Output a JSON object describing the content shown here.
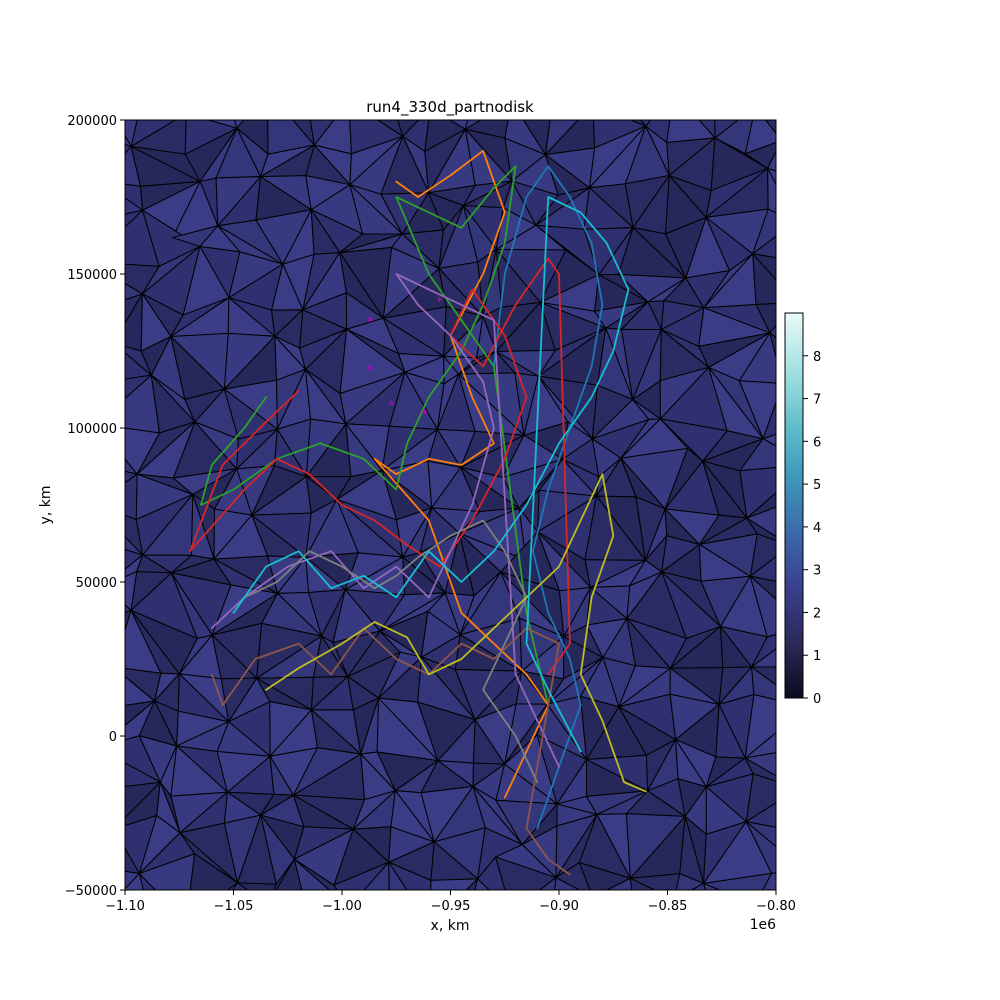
{
  "chart_data": {
    "type": "line",
    "title": "run4_330d_partnodisk",
    "xlabel": "x, km",
    "ylabel": "y, km",
    "x_offset_label": "1e6",
    "xlim": [
      -1.1,
      -0.8
    ],
    "ylim": [
      -50000,
      200000
    ],
    "x_ticks": [
      -1.1,
      -1.05,
      -1.0,
      -0.95,
      -0.9,
      -0.85,
      -0.8
    ],
    "x_tick_labels": [
      "−1.10",
      "−1.05",
      "−1.00",
      "−0.95",
      "−0.90",
      "−0.85",
      "−0.80"
    ],
    "y_ticks": [
      -50000,
      0,
      50000,
      100000,
      150000,
      200000
    ],
    "y_tick_labels": [
      "−50000",
      "0",
      "50000",
      "100000",
      "150000",
      "200000"
    ],
    "colorbar": {
      "range": [
        0,
        9
      ],
      "ticks": [
        0,
        1,
        2,
        3,
        4,
        5,
        6,
        7,
        8
      ],
      "tick_labels": [
        "0",
        "1",
        "2",
        "3",
        "4",
        "5",
        "6",
        "7",
        "8"
      ],
      "colors": [
        "#0b0b1e",
        "#2a2a5a",
        "#3a3f8c",
        "#3a6aa8",
        "#3e97ba",
        "#63c0cc",
        "#a7e2e2",
        "#eafafa"
      ]
    },
    "background": {
      "type": "triangulated mesh",
      "fill_colors": [
        "#2f3070",
        "#34367a",
        "#2a2b62",
        "#3a3d86",
        "#26275a",
        "#373a80"
      ],
      "edge_color": "#000000"
    },
    "series_colors": [
      "#1f77b4",
      "#ff7f0e",
      "#2ca02c",
      "#d62728",
      "#9467bd",
      "#8c564b",
      "#e377c2",
      "#7f7f7f",
      "#bcbd22",
      "#17becf"
    ],
    "start_marker_color": "#cc00cc",
    "start_markers": [
      {
        "x": -0.987,
        "y": 134500
      },
      {
        "x": -0.987,
        "y": 119000
      },
      {
        "x": -0.977,
        "y": 107500
      },
      {
        "x": -0.962,
        "y": 104500
      },
      {
        "x": -0.955,
        "y": 141000
      }
    ],
    "series": [
      {
        "color": "#1f77b4",
        "x": [
          -0.93,
          -0.925,
          -0.915,
          -0.905,
          -0.895,
          -0.885,
          -0.88,
          -0.885,
          -0.895,
          -0.905,
          -0.912,
          -0.905,
          -0.895,
          -0.89,
          -0.9,
          -0.91
        ],
        "y": [
          120000,
          150000,
          175000,
          185000,
          175000,
          160000,
          140000,
          120000,
          100000,
          80000,
          60000,
          40000,
          25000,
          10000,
          -10000,
          -30000
        ]
      },
      {
        "color": "#ff7f0e",
        "x": [
          -0.975,
          -0.965,
          -0.95,
          -0.935,
          -0.925,
          -0.935,
          -0.95,
          -0.94,
          -0.93,
          -0.945,
          -0.96,
          -0.975,
          -0.985,
          -0.96,
          -0.945,
          -0.93,
          -0.915,
          -0.905,
          -0.915,
          -0.925
        ],
        "y": [
          180000,
          175000,
          182000,
          190000,
          170000,
          150000,
          130000,
          110000,
          95000,
          88000,
          90000,
          85000,
          90000,
          70000,
          40000,
          30000,
          20000,
          10000,
          -5000,
          -20000
        ]
      },
      {
        "color": "#2ca02c",
        "x": [
          -1.035,
          -1.045,
          -1.06,
          -1.065,
          -1.05,
          -1.03,
          -1.01,
          -0.99,
          -0.975,
          -0.97,
          -0.96,
          -0.945,
          -0.935,
          -0.925,
          -0.92,
          -0.93,
          -0.945,
          -0.96,
          -0.975,
          -0.96,
          -0.945,
          -0.93,
          -0.915,
          -0.905
        ],
        "y": [
          110000,
          100000,
          88000,
          75000,
          80000,
          90000,
          95000,
          90000,
          80000,
          95000,
          110000,
          125000,
          140000,
          160000,
          185000,
          178000,
          165000,
          170000,
          175000,
          150000,
          135000,
          120000,
          40000,
          10000
        ]
      },
      {
        "color": "#d62728",
        "x": [
          -1.02,
          -1.035,
          -1.055,
          -1.07,
          -1.06,
          -1.045,
          -1.03,
          -1.015,
          -1.0,
          -0.985,
          -0.97,
          -0.955,
          -0.94,
          -0.925,
          -0.915,
          -0.925,
          -0.94,
          -0.95,
          -0.935,
          -0.92,
          -0.905,
          -0.9,
          -0.895,
          -0.905
        ],
        "y": [
          112000,
          102000,
          88000,
          60000,
          68000,
          80000,
          90000,
          85000,
          75000,
          70000,
          62000,
          55000,
          70000,
          90000,
          110000,
          130000,
          145000,
          130000,
          120000,
          140000,
          155000,
          150000,
          30000,
          20000
        ]
      },
      {
        "color": "#9467bd",
        "x": [
          -1.06,
          -1.045,
          -1.025,
          -1.005,
          -0.99,
          -0.975,
          -0.96,
          -0.95,
          -0.94,
          -0.93,
          -0.935,
          -0.95,
          -0.965,
          -0.975,
          -0.96,
          -0.945,
          -0.93,
          -0.92,
          -0.91,
          -0.9
        ],
        "y": [
          35000,
          45000,
          55000,
          60000,
          48000,
          55000,
          45000,
          60000,
          75000,
          100000,
          115000,
          130000,
          140000,
          150000,
          145000,
          140000,
          135000,
          20000,
          5000,
          -10000
        ]
      },
      {
        "color": "#8c564b",
        "x": [
          -1.06,
          -1.055,
          -1.04,
          -1.02,
          -1.005,
          -0.99,
          -0.975,
          -0.96,
          -0.945,
          -0.93,
          -0.915,
          -0.9,
          -0.905,
          -0.91,
          -0.915,
          -0.905,
          -0.895
        ],
        "y": [
          20000,
          10000,
          25000,
          30000,
          20000,
          35000,
          25000,
          20000,
          30000,
          25000,
          35000,
          30000,
          10000,
          -10000,
          -30000,
          -40000,
          -45000
        ]
      },
      {
        "color": "#7f7f7f",
        "x": [
          -1.045,
          -1.03,
          -1.015,
          -1.0,
          -0.985,
          -0.975,
          -0.965,
          -0.95,
          -0.935,
          -0.925,
          -0.915,
          -0.925,
          -0.935,
          -0.92,
          -0.91
        ],
        "y": [
          45000,
          50000,
          60000,
          55000,
          48000,
          52000,
          58000,
          65000,
          70000,
          60000,
          45000,
          30000,
          15000,
          0,
          -15000
        ]
      },
      {
        "color": "#bcbd22",
        "x": [
          -1.035,
          -1.02,
          -1.0,
          -0.985,
          -0.97,
          -0.96,
          -0.945,
          -0.93,
          -0.915,
          -0.9,
          -0.89,
          -0.88,
          -0.875,
          -0.885,
          -0.89,
          -0.88,
          -0.87,
          -0.86
        ],
        "y": [
          15000,
          22000,
          30000,
          37000,
          32000,
          20000,
          25000,
          35000,
          45000,
          55000,
          70000,
          85000,
          65000,
          45000,
          20000,
          5000,
          -15000,
          -18000
        ]
      },
      {
        "color": "#17becf",
        "x": [
          -1.05,
          -1.035,
          -1.02,
          -1.005,
          -0.99,
          -0.975,
          -0.96,
          -0.945,
          -0.93,
          -0.915,
          -0.9,
          -0.885,
          -0.875,
          -0.868,
          -0.878,
          -0.89,
          -0.905,
          -0.915,
          -0.905,
          -0.89
        ],
        "y": [
          40000,
          55000,
          60000,
          48000,
          52000,
          45000,
          60000,
          50000,
          60000,
          75000,
          95000,
          110000,
          125000,
          145000,
          160000,
          170000,
          175000,
          30000,
          15000,
          -5000
        ]
      }
    ]
  }
}
